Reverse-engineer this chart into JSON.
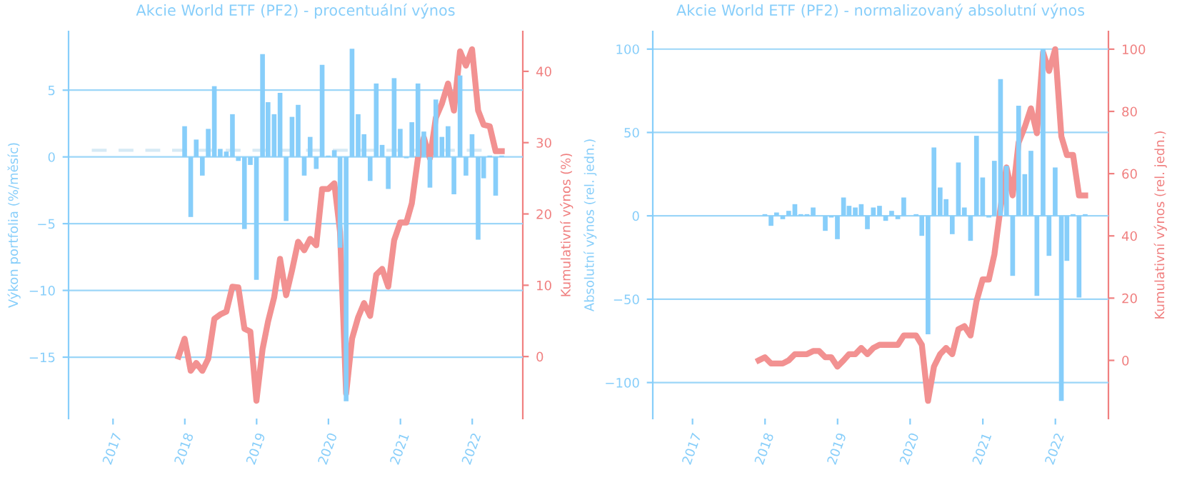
{
  "chart_data": [
    {
      "type": "bar",
      "title": "Akcie World ETF (PF2) - procentuální výnos",
      "ylabel": "Výkon portfolia (%/měsíc)",
      "y2label": "Kumulativní výnos (%)",
      "xlim": [
        "2016-05-20",
        "2022-09-15"
      ],
      "xticks": [
        {
          "value": "2017-01-01",
          "label": "2017"
        },
        {
          "value": "2018-01-01",
          "label": "2018"
        },
        {
          "value": "2019-01-01",
          "label": "2019"
        },
        {
          "value": "2020-01-01",
          "label": "2020"
        },
        {
          "value": "2021-01-01",
          "label": "2021"
        },
        {
          "value": "2022-01-01",
          "label": "2022"
        }
      ],
      "ylim": [
        -19.6,
        9.4
      ],
      "yticks": [
        -15,
        -10,
        -5,
        0,
        5
      ],
      "y2lim": [
        -8.7,
        45.6
      ],
      "y2ticks": [
        0,
        10,
        20,
        30,
        40
      ],
      "grid": "y",
      "series": [
        {
          "type": "line",
          "color": "#d6eaf5",
          "line_style": "dashed",
          "axis": "y",
          "x": [
            "2016-09-15",
            "2022-06-15"
          ],
          "values": [
            0.5,
            0.5
          ]
        },
        {
          "color": "#87cefa",
          "axis": "y",
          "x": [
            "2017-12-31",
            "2018-01-31",
            "2018-02-28",
            "2018-03-31",
            "2018-04-30",
            "2018-05-31",
            "2018-06-30",
            "2018-07-31",
            "2018-08-31",
            "2018-09-30",
            "2018-10-31",
            "2018-11-30",
            "2018-12-31",
            "2019-01-31",
            "2019-02-28",
            "2019-03-31",
            "2019-04-30",
            "2019-05-31",
            "2019-06-30",
            "2019-07-31",
            "2019-08-31",
            "2019-09-30",
            "2019-10-31",
            "2019-11-30",
            "2019-12-31",
            "2020-01-31",
            "2020-02-29",
            "2020-03-31",
            "2020-04-30",
            "2020-05-31",
            "2020-06-30",
            "2020-07-31",
            "2020-08-31",
            "2020-09-30",
            "2020-10-31",
            "2020-11-30",
            "2020-12-31",
            "2021-01-31",
            "2021-02-28",
            "2021-03-31",
            "2021-04-30",
            "2021-05-31",
            "2021-06-30",
            "2021-07-31",
            "2021-08-31",
            "2021-09-30",
            "2021-10-31",
            "2021-11-30",
            "2021-12-31",
            "2022-01-31",
            "2022-02-28",
            "2022-03-31",
            "2022-04-30",
            "2022-05-31"
          ],
          "values": [
            2.3,
            -4.5,
            1.3,
            -1.4,
            2.1,
            5.3,
            0.6,
            0.4,
            3.2,
            -0.3,
            -5.4,
            -0.6,
            -9.2,
            7.7,
            4.1,
            3.2,
            4.8,
            -4.8,
            3.0,
            3.9,
            -1.4,
            1.5,
            -0.9,
            6.9,
            0.1,
            0.5,
            -6.8,
            -18.3,
            8.1,
            3.2,
            1.7,
            -1.8,
            5.5,
            0.9,
            -2.4,
            5.9,
            2.1,
            -0.1,
            2.6,
            5.5,
            1.9,
            -2.3,
            4.3,
            1.5,
            2.3,
            -2.8,
            6.1,
            -1.4,
            1.7,
            -6.2,
            -1.6,
            0.1,
            -2.9,
            0.1
          ]
        },
        {
          "type": "line",
          "color": "#f29191",
          "axis": "y2",
          "x": [
            "2017-11-30",
            "2017-12-31",
            "2018-01-31",
            "2018-02-28",
            "2018-03-31",
            "2018-04-30",
            "2018-05-31",
            "2018-06-30",
            "2018-07-31",
            "2018-08-31",
            "2018-09-30",
            "2018-10-31",
            "2018-11-30",
            "2018-12-31",
            "2019-01-31",
            "2019-02-28",
            "2019-03-31",
            "2019-04-30",
            "2019-05-31",
            "2019-06-30",
            "2019-07-31",
            "2019-08-31",
            "2019-09-30",
            "2019-10-31",
            "2019-11-30",
            "2019-12-31",
            "2020-01-31",
            "2020-02-29",
            "2020-03-31",
            "2020-04-30",
            "2020-05-31",
            "2020-06-30",
            "2020-07-31",
            "2020-08-31",
            "2020-09-30",
            "2020-10-31",
            "2020-11-30",
            "2020-12-31",
            "2021-01-31",
            "2021-02-28",
            "2021-03-31",
            "2021-04-30",
            "2021-05-31",
            "2021-06-30",
            "2021-07-31",
            "2021-08-31",
            "2021-09-30",
            "2021-10-31",
            "2021-11-30",
            "2021-12-31",
            "2022-01-31",
            "2022-02-28",
            "2022-03-31",
            "2022-04-30",
            "2022-05-31"
          ],
          "values": [
            0,
            2.5,
            -2.0,
            -0.9,
            -2.0,
            -0.3,
            5.3,
            5.9,
            6.3,
            9.8,
            9.7,
            3.9,
            3.5,
            -6.2,
            1.0,
            4.9,
            8.3,
            13.7,
            8.6,
            12.1,
            16.1,
            14.9,
            16.5,
            15.6,
            23.5,
            23.5,
            24.3,
            17.5,
            -5.2,
            2.5,
            5.5,
            7.5,
            5.7,
            11.5,
            12.3,
            9.8,
            16.3,
            18.8,
            18.8,
            21.5,
            27.8,
            30.7,
            27.8,
            33.5,
            35.5,
            38.3,
            34.5,
            42.8,
            40.8,
            43.1,
            34.5,
            32.5,
            32.3,
            28.8,
            28.8
          ]
        }
      ]
    },
    {
      "type": "bar",
      "title": "Akcie World ETF (PF2) - normalizovaný absolutní výnos",
      "ylabel": "Absolutní výnos (rel. jedn.)",
      "y2label": "Kumulativní výnos (rel. jedn.)",
      "xlim": [
        "2016-06-15",
        "2022-09-25"
      ],
      "xticks": [
        {
          "value": "2017-01-01",
          "label": "2017"
        },
        {
          "value": "2018-01-01",
          "label": "2018"
        },
        {
          "value": "2019-01-01",
          "label": "2019"
        },
        {
          "value": "2020-01-01",
          "label": "2020"
        },
        {
          "value": "2021-01-01",
          "label": "2021"
        },
        {
          "value": "2022-01-01",
          "label": "2022"
        }
      ],
      "ylim": [
        -121.6,
        110.6
      ],
      "yticks": [
        -100,
        -50,
        0,
        50,
        100
      ],
      "y2lim": [
        -18.7,
        105.7
      ],
      "y2ticks": [
        0,
        20,
        40,
        60,
        80,
        100
      ],
      "grid": "y",
      "series": [
        {
          "color": "#87cefa",
          "axis": "y",
          "x": [
            "2017-12-31",
            "2018-01-31",
            "2018-02-28",
            "2018-03-31",
            "2018-04-30",
            "2018-05-31",
            "2018-06-30",
            "2018-07-31",
            "2018-08-31",
            "2018-09-30",
            "2018-10-31",
            "2018-11-30",
            "2018-12-31",
            "2019-01-31",
            "2019-02-28",
            "2019-03-31",
            "2019-04-30",
            "2019-05-31",
            "2019-06-30",
            "2019-07-31",
            "2019-08-31",
            "2019-09-30",
            "2019-10-31",
            "2019-11-30",
            "2019-12-31",
            "2020-01-31",
            "2020-02-29",
            "2020-03-31",
            "2020-04-30",
            "2020-05-31",
            "2020-06-30",
            "2020-07-31",
            "2020-08-31",
            "2020-09-30",
            "2020-10-31",
            "2020-11-30",
            "2020-12-31",
            "2021-01-31",
            "2021-02-28",
            "2021-03-31",
            "2021-04-30",
            "2021-05-31",
            "2021-06-30",
            "2021-07-31",
            "2021-08-31",
            "2021-09-30",
            "2021-10-31",
            "2021-11-30",
            "2021-12-31",
            "2022-01-31",
            "2022-02-28",
            "2022-03-31",
            "2022-04-30",
            "2022-05-31"
          ],
          "values": [
            1,
            -6,
            2,
            -2,
            3,
            7,
            1,
            1,
            5,
            0,
            -9,
            -1,
            -14,
            11,
            6,
            5,
            7,
            -8,
            5,
            6,
            -3,
            3,
            -2,
            11,
            0,
            1,
            -12,
            -71,
            41,
            17,
            10,
            -11,
            32,
            5,
            -15,
            48,
            23,
            -1,
            33,
            82,
            30,
            -36,
            66,
            25,
            39,
            -48,
            100,
            -24,
            29,
            -111,
            -27,
            1,
            -49,
            1
          ]
        },
        {
          "type": "line",
          "color": "#f29191",
          "axis": "y2",
          "x": [
            "2017-11-30",
            "2017-12-31",
            "2018-01-31",
            "2018-02-28",
            "2018-03-31",
            "2018-04-30",
            "2018-05-31",
            "2018-06-30",
            "2018-07-31",
            "2018-08-31",
            "2018-09-30",
            "2018-10-31",
            "2018-11-30",
            "2018-12-31",
            "2019-01-31",
            "2019-02-28",
            "2019-03-31",
            "2019-04-30",
            "2019-05-31",
            "2019-06-30",
            "2019-07-31",
            "2019-08-31",
            "2019-09-30",
            "2019-10-31",
            "2019-11-30",
            "2019-12-31",
            "2020-01-31",
            "2020-02-29",
            "2020-03-31",
            "2020-04-30",
            "2020-05-31",
            "2020-06-30",
            "2020-07-31",
            "2020-08-31",
            "2020-09-30",
            "2020-10-31",
            "2020-11-30",
            "2020-12-31",
            "2021-01-31",
            "2021-02-28",
            "2021-03-31",
            "2021-04-30",
            "2021-05-31",
            "2021-06-30",
            "2021-07-31",
            "2021-08-31",
            "2021-09-30",
            "2021-10-31",
            "2021-11-30",
            "2021-12-31",
            "2022-01-31",
            "2022-02-28",
            "2022-03-31",
            "2022-04-30",
            "2022-05-31"
          ],
          "values": [
            0,
            1,
            -1,
            -1,
            -1,
            0,
            2,
            2,
            2,
            3,
            3,
            1,
            1,
            -2,
            0,
            2,
            2,
            4,
            2,
            4,
            5,
            5,
            5,
            5,
            8,
            8,
            8,
            5,
            -13,
            -2,
            2,
            4,
            2,
            10,
            11,
            8,
            19,
            26,
            26,
            34,
            49,
            62,
            53,
            70,
            75,
            81,
            73,
            99,
            93,
            100,
            72,
            66,
            66,
            53,
            53
          ]
        }
      ]
    }
  ]
}
